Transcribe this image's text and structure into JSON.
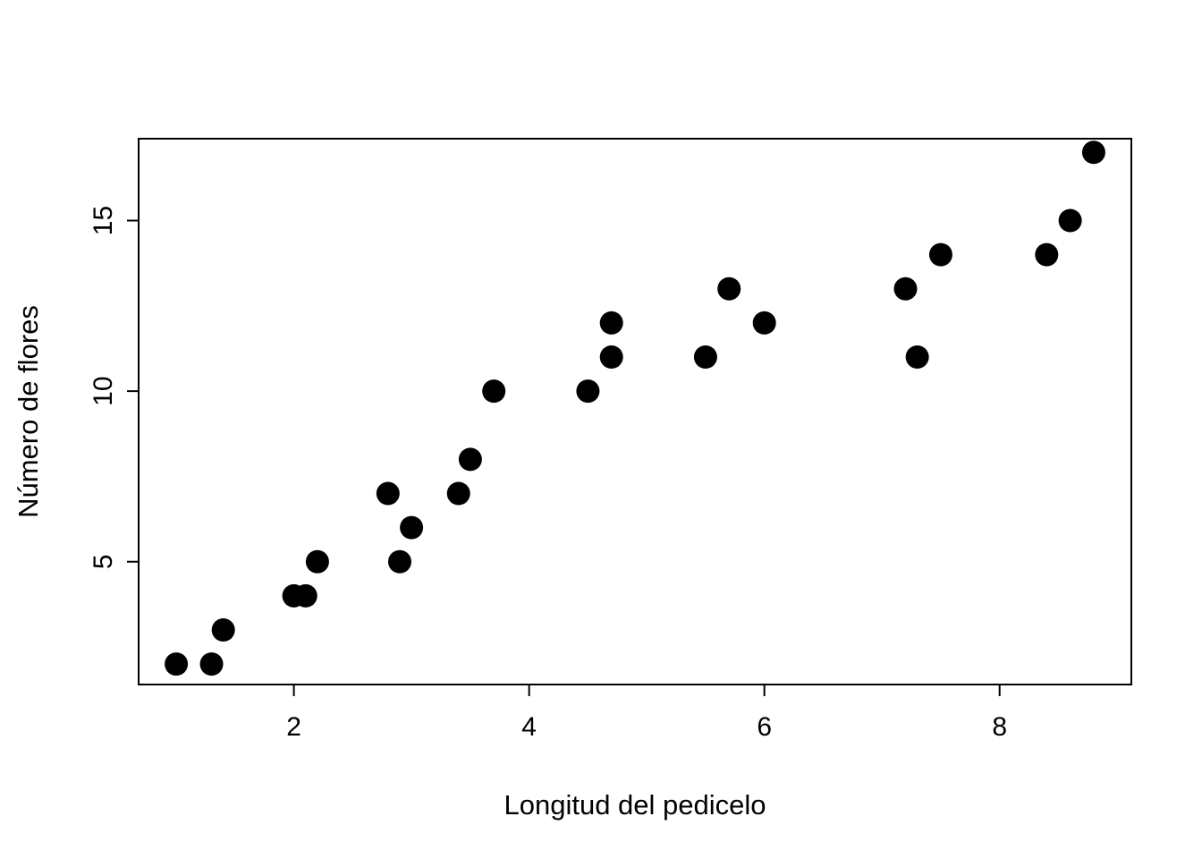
{
  "chart_data": {
    "type": "scatter",
    "title": "",
    "xlabel": "Longitud del pedicelo",
    "ylabel": "Número de flores",
    "xlim": [
      0.68,
      9.12
    ],
    "ylim": [
      1.4,
      17.4
    ],
    "x_ticks": [
      2,
      4,
      6,
      8
    ],
    "y_ticks": [
      5,
      10,
      15
    ],
    "grid": false,
    "legend": "none",
    "point_color": "#000000",
    "point_radius": 13,
    "background": "#ffffff",
    "points": [
      {
        "x": 1.0,
        "y": 2
      },
      {
        "x": 1.3,
        "y": 2
      },
      {
        "x": 1.4,
        "y": 3
      },
      {
        "x": 2.0,
        "y": 4
      },
      {
        "x": 2.1,
        "y": 4
      },
      {
        "x": 2.2,
        "y": 5
      },
      {
        "x": 2.8,
        "y": 7
      },
      {
        "x": 2.9,
        "y": 5
      },
      {
        "x": 3.0,
        "y": 6
      },
      {
        "x": 3.4,
        "y": 7
      },
      {
        "x": 3.5,
        "y": 8
      },
      {
        "x": 3.7,
        "y": 10
      },
      {
        "x": 4.5,
        "y": 10
      },
      {
        "x": 4.7,
        "y": 11
      },
      {
        "x": 4.7,
        "y": 12
      },
      {
        "x": 5.5,
        "y": 11
      },
      {
        "x": 5.7,
        "y": 13
      },
      {
        "x": 6.0,
        "y": 12
      },
      {
        "x": 7.2,
        "y": 13
      },
      {
        "x": 7.3,
        "y": 11
      },
      {
        "x": 7.5,
        "y": 14
      },
      {
        "x": 8.4,
        "y": 14
      },
      {
        "x": 8.6,
        "y": 15
      },
      {
        "x": 8.8,
        "y": 17
      }
    ]
  }
}
